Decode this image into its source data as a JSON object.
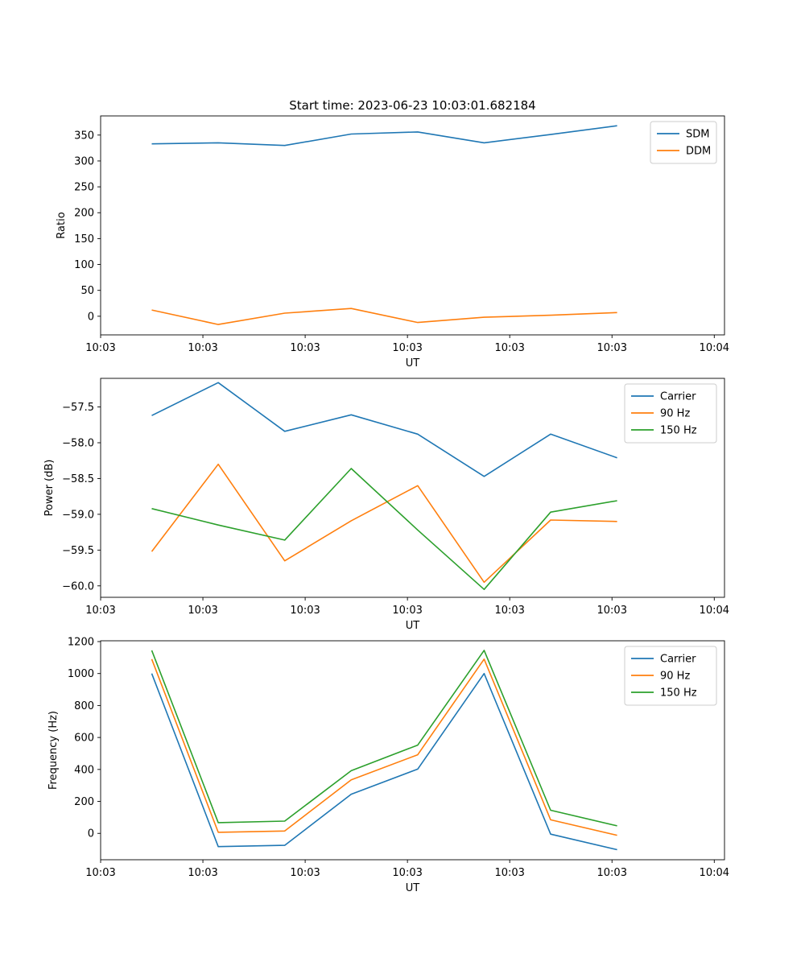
{
  "chart_data": [
    {
      "type": "line",
      "title": "Start time: 2023-06-23 10:03:01.682184",
      "xlabel": "UT",
      "ylabel": "Ratio",
      "x_tick_labels": [
        "10:03",
        "10:03",
        "10:03",
        "10:03",
        "10:03",
        "10:03",
        "10:04"
      ],
      "y_ticks": [
        0,
        50,
        100,
        150,
        200,
        250,
        300,
        350
      ],
      "y_tick_labels": [
        "0",
        "50",
        "100",
        "150",
        "200",
        "250",
        "300",
        "350"
      ],
      "xlim": [
        0,
        6.1
      ],
      "ylim": [
        -36,
        387
      ],
      "x": [
        0.5,
        1.15,
        1.8,
        2.45,
        3.1,
        3.75,
        4.4,
        5.05
      ],
      "series": [
        {
          "name": "SDM",
          "color": "#1f77b4",
          "values": [
            333,
            335,
            330,
            352,
            356,
            335,
            351,
            368
          ]
        },
        {
          "name": "DDM",
          "color": "#ff7f0e",
          "values": [
            12,
            -16,
            6,
            15,
            -12,
            -2,
            2,
            7
          ]
        }
      ],
      "legend": "top-right",
      "grid": false
    },
    {
      "type": "line",
      "title": "",
      "xlabel": "UT",
      "ylabel": "Power (dB)",
      "x_tick_labels": [
        "10:03",
        "10:03",
        "10:03",
        "10:03",
        "10:03",
        "10:03",
        "10:04"
      ],
      "y_ticks": [
        -60.0,
        -59.5,
        -59.0,
        -58.5,
        -58.0,
        -57.5
      ],
      "y_tick_labels": [
        "−60.0",
        "−59.5",
        "−59.0",
        "−58.5",
        "−58.0",
        "−57.5"
      ],
      "xlim": [
        0,
        6.1
      ],
      "ylim": [
        -60.16,
        -57.1
      ],
      "x": [
        0.5,
        1.15,
        1.8,
        2.45,
        3.1,
        3.75,
        4.4,
        5.05
      ],
      "series": [
        {
          "name": "Carrier",
          "color": "#1f77b4",
          "values": [
            -57.62,
            -57.16,
            -57.84,
            -57.61,
            -57.88,
            -58.47,
            -57.88,
            -58.21
          ]
        },
        {
          "name": "90 Hz",
          "color": "#ff7f0e",
          "values": [
            -59.52,
            -58.3,
            -59.65,
            -59.09,
            -58.6,
            -59.95,
            -59.08,
            -59.1
          ]
        },
        {
          "name": "150 Hz",
          "color": "#2ca02c",
          "values": [
            -58.92,
            -59.15,
            -59.36,
            -58.36,
            -59.22,
            -60.05,
            -58.97,
            -58.81
          ]
        }
      ],
      "legend": "top-right",
      "grid": false
    },
    {
      "type": "line",
      "title": "",
      "xlabel": "UT",
      "ylabel": "Frequency (Hz)",
      "x_tick_labels": [
        "10:03",
        "10:03",
        "10:03",
        "10:03",
        "10:03",
        "10:03",
        "10:04"
      ],
      "y_ticks": [
        0,
        200,
        400,
        600,
        800,
        1000,
        1200
      ],
      "y_tick_labels": [
        "0",
        "200",
        "400",
        "600",
        "800",
        "1000",
        "1200"
      ],
      "xlim": [
        0,
        6.1
      ],
      "ylim": [
        -165,
        1205
      ],
      "x": [
        0.5,
        1.15,
        1.8,
        2.45,
        3.1,
        3.75,
        4.4,
        5.05
      ],
      "series": [
        {
          "name": "Carrier",
          "color": "#1f77b4",
          "values": [
            1000,
            -83,
            -75,
            245,
            402,
            1000,
            -5,
            -102
          ]
        },
        {
          "name": "90 Hz",
          "color": "#ff7f0e",
          "values": [
            1090,
            7,
            15,
            335,
            492,
            1090,
            85,
            -12
          ]
        },
        {
          "name": "150 Hz",
          "color": "#2ca02c",
          "values": [
            1145,
            67,
            77,
            392,
            552,
            1145,
            145,
            47
          ]
        }
      ],
      "legend": "top-right",
      "grid": false
    }
  ]
}
